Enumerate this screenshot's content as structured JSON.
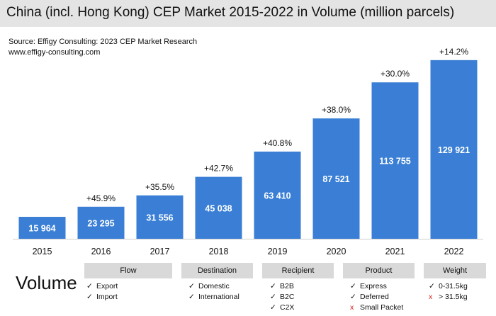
{
  "title": "China (incl. Hong Kong) CEP Market 2015-2022 in Volume (million parcels)",
  "source_line1": "Source: Effigy Consulting: 2023 CEP Market Research",
  "source_line2": "www.effigy-consulting.com",
  "chart_data": {
    "type": "bar",
    "categories": [
      "2015",
      "2016",
      "2017",
      "2018",
      "2019",
      "2020",
      "2021",
      "2022"
    ],
    "values": [
      15964,
      23295,
      31556,
      45038,
      63410,
      87521,
      113755,
      129921
    ],
    "value_labels": [
      "15 964",
      "23 295",
      "31 556",
      "45 038",
      "63 410",
      "87 521",
      "113 755",
      "129 921"
    ],
    "growth_labels": [
      "",
      "+45.9%",
      "+35.5%",
      "+42.7%",
      "+40.8%",
      "+38.0%",
      "+30.0%",
      "+14.2%"
    ],
    "ylim": [
      0,
      135000
    ],
    "bar_color": "#3a7fd5",
    "grid": false,
    "legend": "none"
  },
  "legend_section": {
    "label": "Volume",
    "categories": [
      {
        "title": "Flow",
        "items": [
          {
            "text": "Export",
            "included": true,
            "mark": "✓"
          },
          {
            "text": "Import",
            "included": true,
            "mark": "✓"
          }
        ]
      },
      {
        "title": "Destination",
        "items": [
          {
            "text": "Domestic",
            "included": true,
            "mark": "✓"
          },
          {
            "text": "International",
            "included": true,
            "mark": "✓"
          }
        ]
      },
      {
        "title": "Recipient",
        "items": [
          {
            "text": "B2B",
            "included": true,
            "mark": "✓"
          },
          {
            "text": "B2C",
            "included": true,
            "mark": "✓"
          },
          {
            "text": "C2X",
            "included": true,
            "mark": "✓"
          }
        ]
      },
      {
        "title": "Product",
        "items": [
          {
            "text": "Express",
            "included": true,
            "mark": "✓"
          },
          {
            "text": "Deferred",
            "included": true,
            "mark": "✓"
          },
          {
            "text": "Small Packet",
            "included": false,
            "mark": "x"
          }
        ]
      },
      {
        "title": "Weight",
        "items": [
          {
            "text": "0-31.5kg",
            "included": true,
            "mark": "✓"
          },
          {
            "text": "> 31.5kg",
            "included": false,
            "mark": "x"
          }
        ]
      }
    ]
  }
}
